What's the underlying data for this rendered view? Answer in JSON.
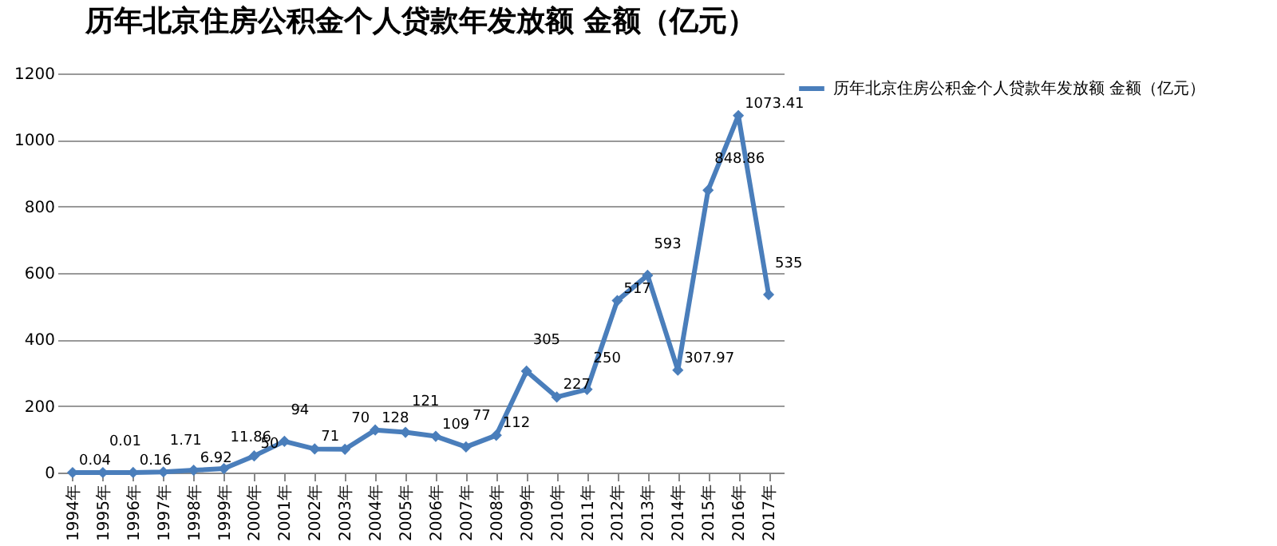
{
  "chart_data": {
    "type": "line",
    "title": "历年北京住房公积金个人贷款年发放额 金额（亿元）",
    "categories": [
      "1994年",
      "1995年",
      "1996年",
      "1997年",
      "1998年",
      "1999年",
      "2000年",
      "2001年",
      "2002年",
      "2003年",
      "2004年",
      "2005年",
      "2006年",
      "2007年",
      "2008年",
      "2009年",
      "2010年",
      "2011年",
      "2012年",
      "2013年",
      "2014年",
      "2015年",
      "2016年",
      "2017年"
    ],
    "series": [
      {
        "name": "历年北京住房公积金个人贷款年发放额 金额（亿元）",
        "color": "#4a7ebb",
        "values": [
          0.04,
          0.01,
          0.16,
          1.71,
          6.92,
          11.86,
          50,
          94,
          71,
          70,
          128,
          121,
          109,
          77,
          112,
          305,
          227,
          250,
          517,
          593,
          307.97,
          848.86,
          1073.41,
          535
        ]
      }
    ],
    "ylim": [
      0,
      1200
    ],
    "yticks": [
      0,
      200,
      400,
      600,
      800,
      1000,
      1200
    ],
    "grid": "y",
    "legend": "right",
    "marker": "diamond",
    "line_style": "solid",
    "data_labels": true
  }
}
